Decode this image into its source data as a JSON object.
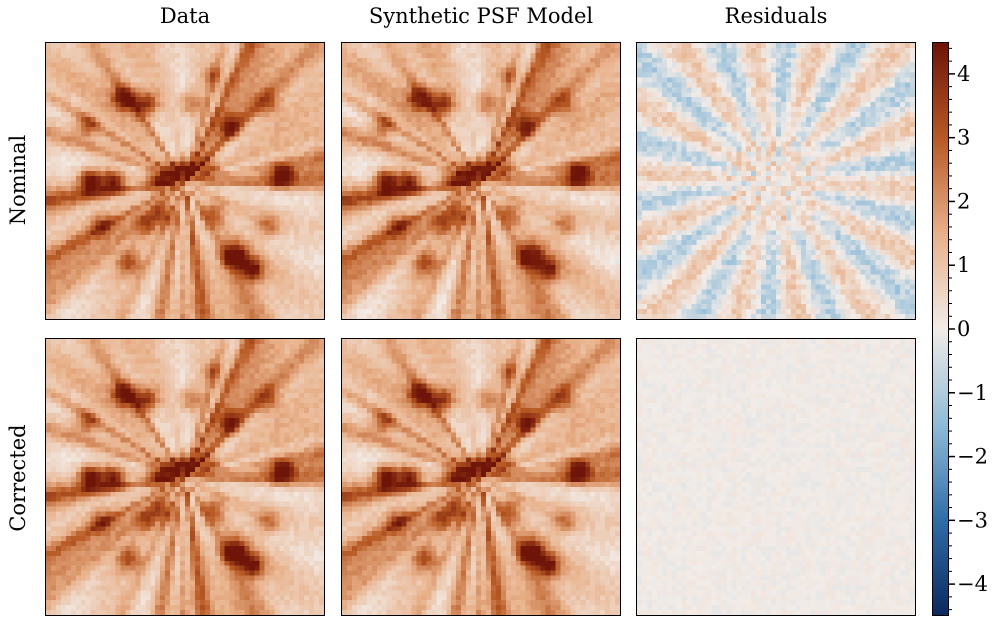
{
  "chart_data": {
    "type": "heatmap",
    "columns": [
      "Data",
      "Synthetic PSF Model",
      "Residuals"
    ],
    "rows": [
      "Nominal",
      "Corrected"
    ],
    "colorbar": {
      "min": -4.5,
      "max": 4.5,
      "ticks": [
        -4,
        -3,
        -2,
        -1,
        0,
        1,
        2,
        3,
        4
      ],
      "tick_labels": [
        "−4",
        "−3",
        "−2",
        "−1",
        "0",
        "1",
        "2",
        "3",
        "4"
      ],
      "colormap": [
        "#0b2a5e",
        "#2f6ea8",
        "#8fbcd8",
        "#f2ece8",
        "#e8b18a",
        "#b85a24",
        "#6e1408"
      ]
    },
    "residual_strength": {
      "Nominal": "moderate",
      "Corrected": "near-zero"
    }
  }
}
